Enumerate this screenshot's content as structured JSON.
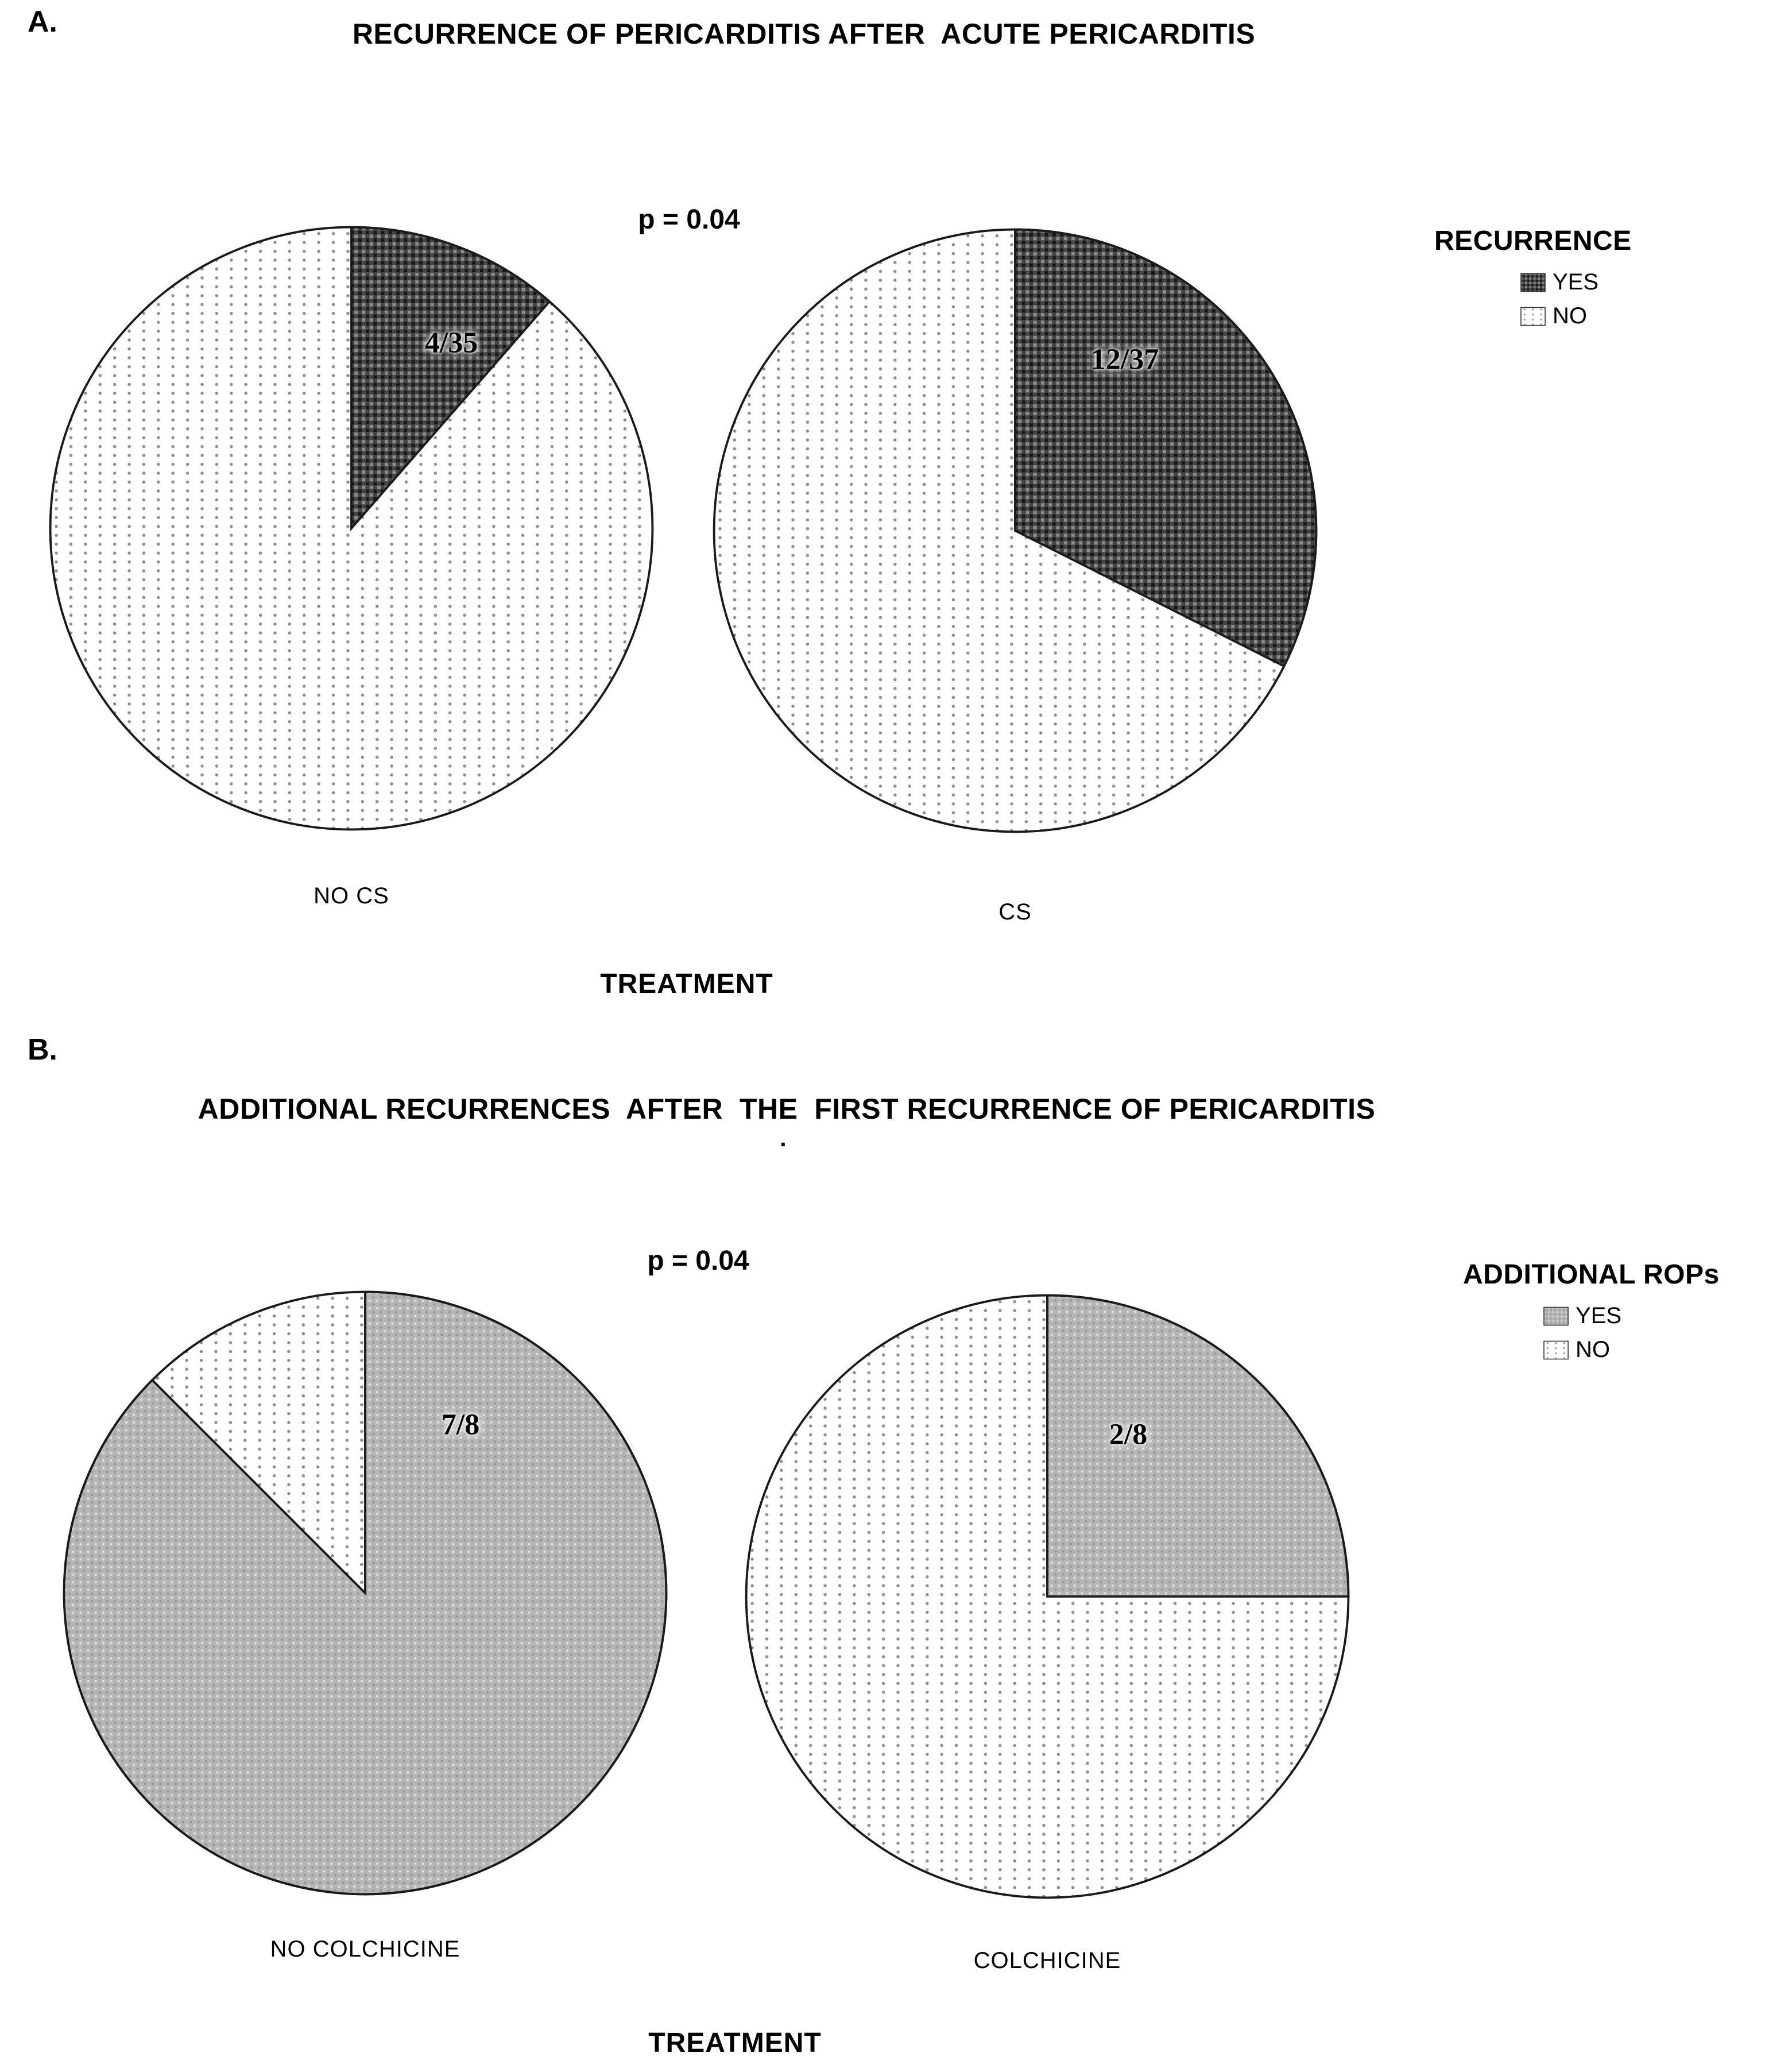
{
  "figure": {
    "background": "#ffffff"
  },
  "chart_data": [
    {
      "type": "pie",
      "panel_tag": "A.",
      "title": "RECURRENCE OF PERICARDITIS AFTER  ACUTE PERICARDITIS",
      "annotation_p_value": "p = 0.04",
      "xlabel": "TREATMENT",
      "legend": {
        "title": "RECURRENCE",
        "position": "right",
        "entries": [
          {
            "label": "YES",
            "pattern": "dark-checker"
          },
          {
            "label": "NO",
            "pattern": "light-vertical-dots"
          }
        ]
      },
      "pies": [
        {
          "category": "NO CS",
          "data_label": "4/35",
          "total": 35,
          "slices": [
            {
              "name": "YES",
              "value": 4
            },
            {
              "name": "NO",
              "value": 31
            }
          ]
        },
        {
          "category": "CS",
          "data_label": "12/37",
          "total": 37,
          "slices": [
            {
              "name": "YES",
              "value": 12
            },
            {
              "name": "NO",
              "value": 25
            }
          ]
        }
      ],
      "colors": {
        "yes_fill": "#454545",
        "yes_texture_light": "#8d8d8d",
        "yes_texture_dark": "#161616",
        "no_fill": "#ffffff",
        "no_dot": "#8f8f8f",
        "outline": "#1a1a1a"
      }
    },
    {
      "type": "pie",
      "panel_tag": "B.",
      "title": "ADDITIONAL RECURRENCES  AFTER  THE  FIRST RECURRENCE OF PERICARDITIS",
      "stray_mark": ".",
      "annotation_p_value": "p = 0.04",
      "xlabel": "TREATMENT",
      "legend": {
        "title": "ADDITIONAL ROPs",
        "position": "right",
        "entries": [
          {
            "label": "YES",
            "pattern": "gray-fine-dots"
          },
          {
            "label": "NO",
            "pattern": "light-vertical-dots"
          }
        ]
      },
      "pies": [
        {
          "category": "NO COLCHICINE",
          "data_label": "7/8",
          "total": 8,
          "slices": [
            {
              "name": "YES",
              "value": 7
            },
            {
              "name": "NO",
              "value": 1
            }
          ]
        },
        {
          "category": "COLCHICINE",
          "data_label": "2/8",
          "total": 8,
          "slices": [
            {
              "name": "YES",
              "value": 2
            },
            {
              "name": "NO",
              "value": 6
            }
          ]
        }
      ],
      "colors": {
        "yes_fill": "#b5b5b5",
        "yes_texture_light": "#dedede",
        "yes_texture_dark": "#999999",
        "no_fill": "#ffffff",
        "no_dot": "#8f8f8f",
        "outline": "#1a1a1a"
      }
    }
  ]
}
